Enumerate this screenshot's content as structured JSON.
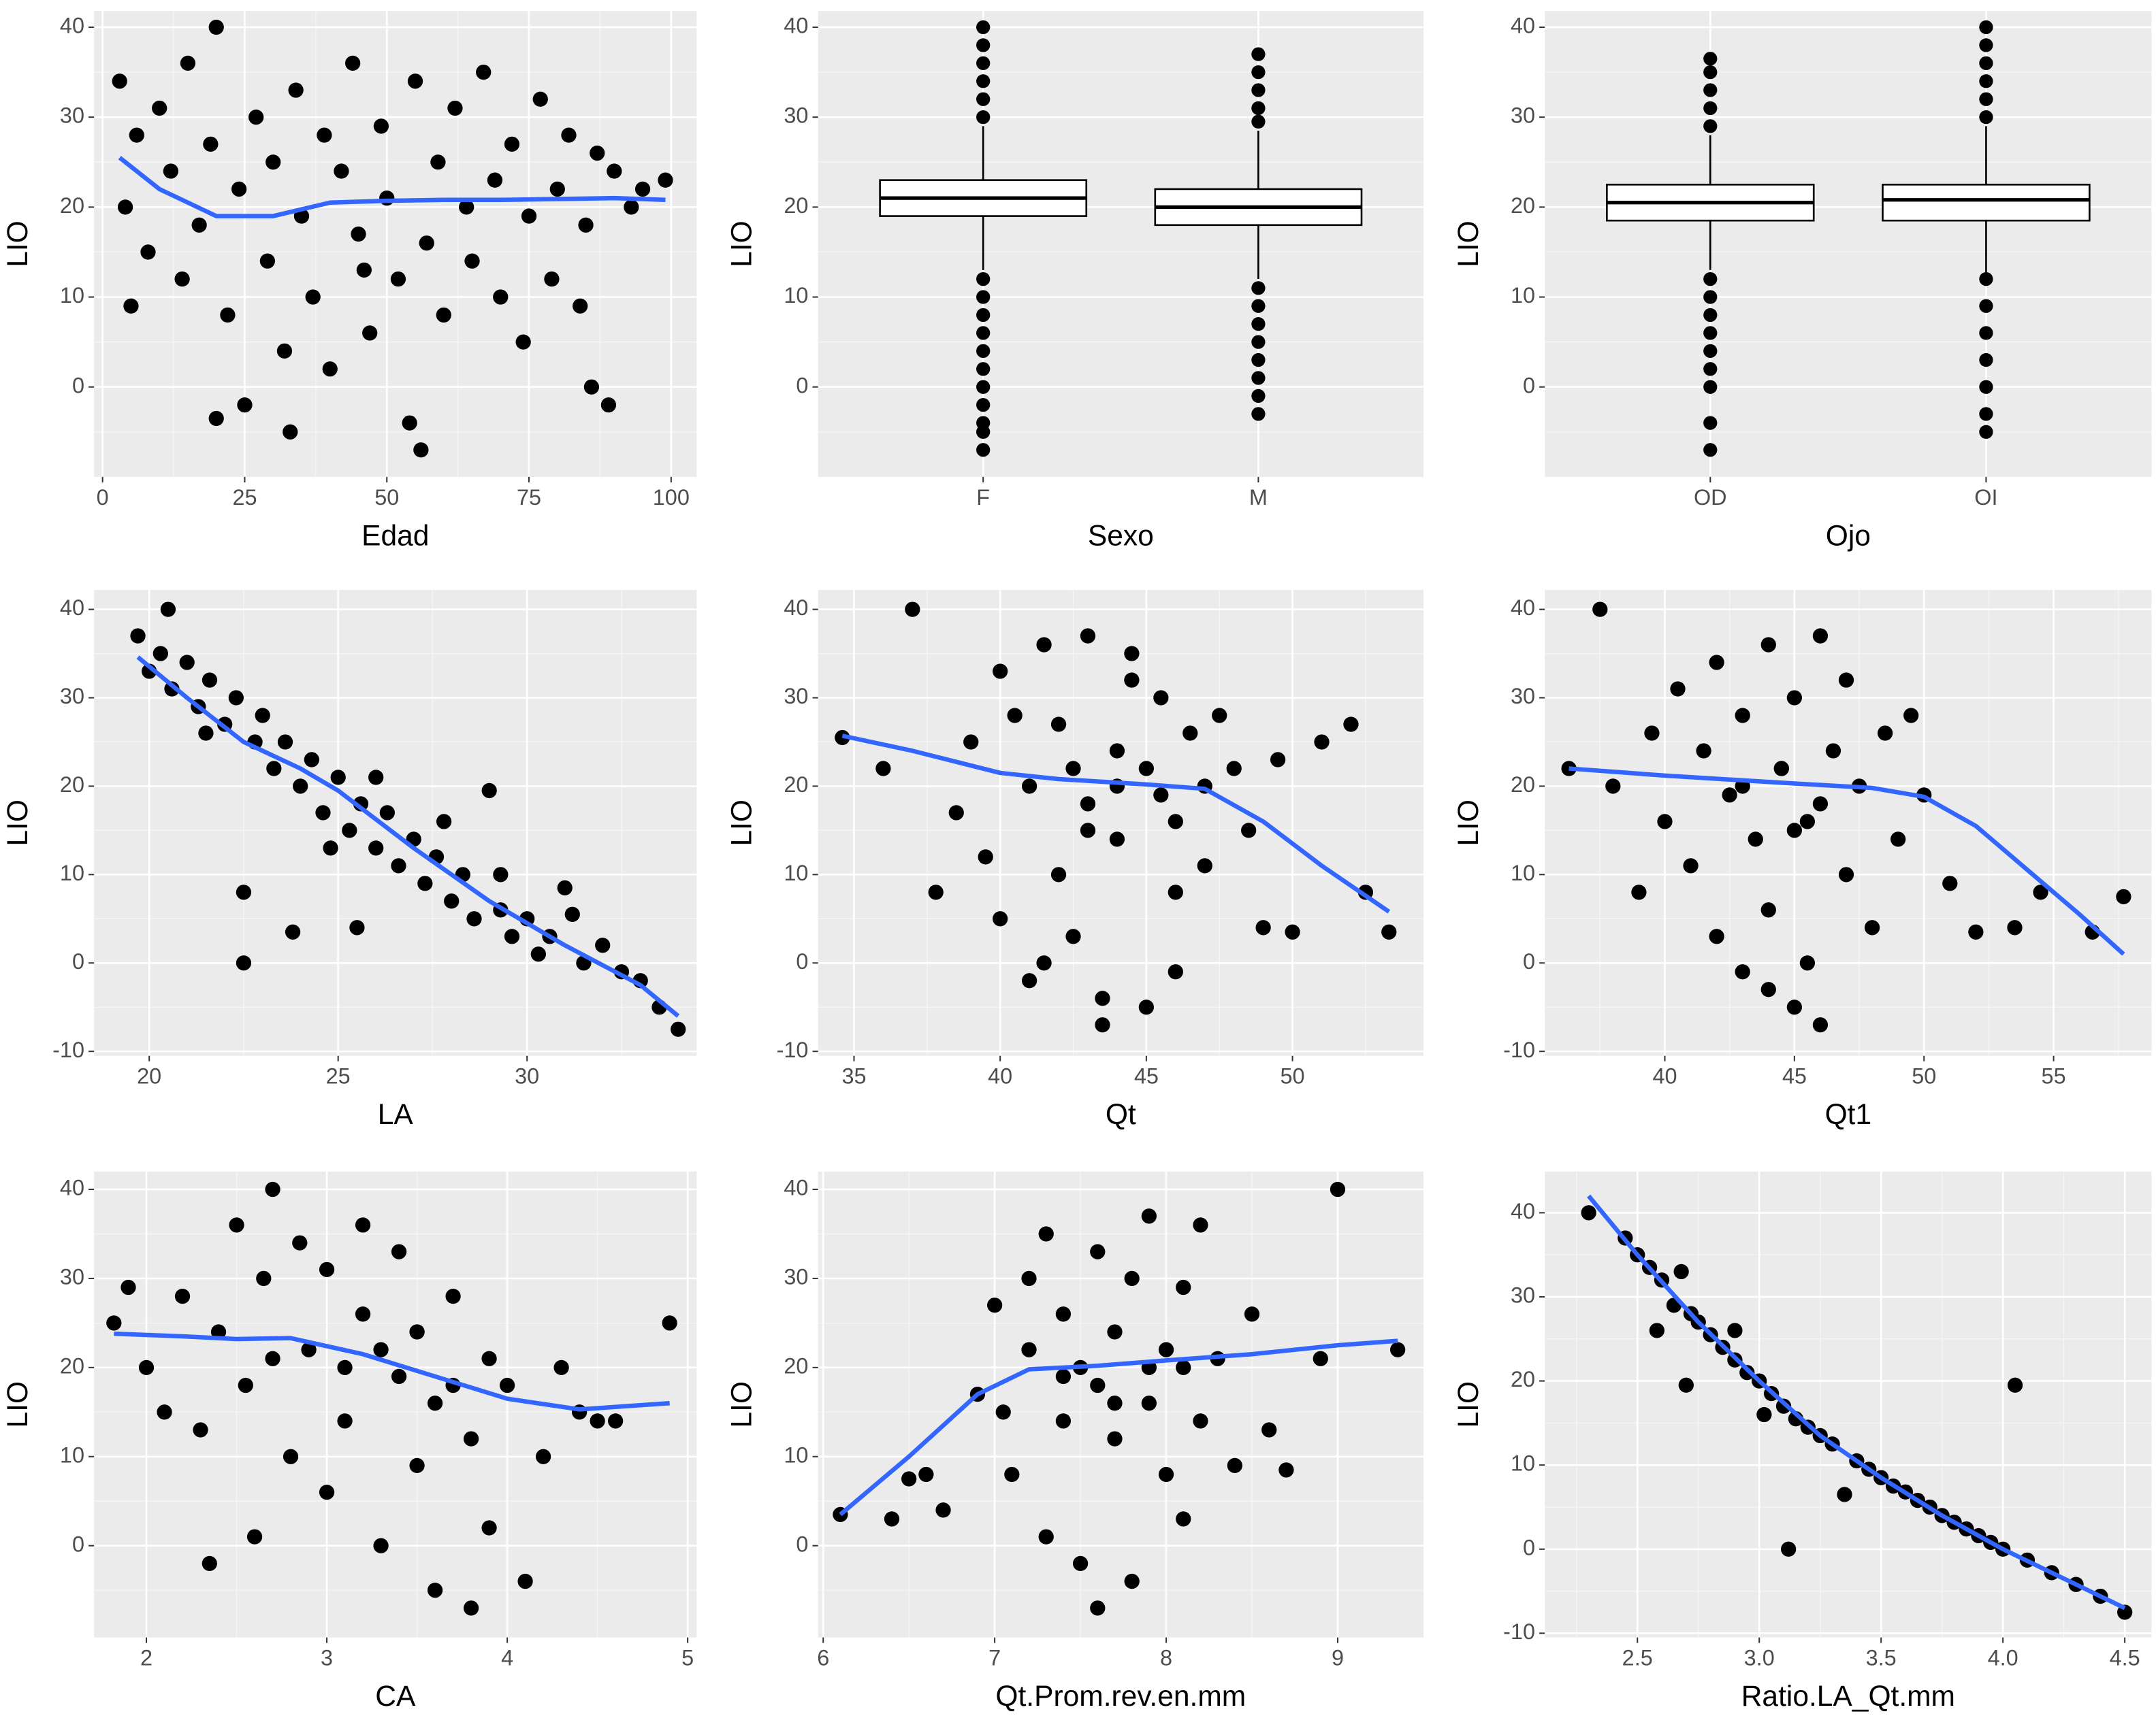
{
  "chart_data": [
    {
      "type": "scatter",
      "xlabel": "Edad",
      "ylabel": "LIO",
      "xlim": [
        -1.5,
        104.5
      ],
      "ylim": [
        -10,
        41.8
      ],
      "xticks": [
        0,
        25,
        50,
        75,
        100
      ],
      "yticks": [
        0,
        10,
        20,
        30,
        40
      ],
      "grid": true,
      "color": "#000000",
      "x": [
        3,
        4,
        5,
        6,
        8,
        10,
        12,
        14,
        15,
        17,
        19,
        20,
        22,
        24,
        25,
        27,
        29,
        30,
        32,
        34,
        35,
        37,
        39,
        40,
        42,
        44,
        45,
        47,
        49,
        50,
        52,
        54,
        55,
        57,
        59,
        60,
        62,
        64,
        65,
        67,
        69,
        70,
        72,
        74,
        75,
        77,
        79,
        80,
        82,
        84,
        85,
        87,
        89,
        90,
        93,
        95,
        99,
        20,
        33,
        56,
        86,
        46
      ],
      "y": [
        34,
        20,
        9,
        28,
        15,
        31,
        24,
        12,
        36,
        18,
        27,
        40,
        8,
        22,
        -2,
        30,
        14,
        25,
        4,
        33,
        19,
        10,
        28,
        2,
        24,
        36,
        17,
        6,
        29,
        21,
        12,
        -4,
        34,
        16,
        25,
        8,
        31,
        20,
        14,
        35,
        23,
        10,
        27,
        5,
        19,
        32,
        12,
        22,
        28,
        9,
        18,
        26,
        -2,
        24,
        20,
        22,
        23,
        -3.5,
        -5,
        -7,
        0,
        13
      ],
      "smooth": {
        "color": "#3366ff",
        "x": [
          3,
          10,
          20,
          30,
          40,
          50,
          60,
          70,
          80,
          90,
          99
        ],
        "y": [
          25.5,
          22,
          19,
          19,
          20.5,
          20.7,
          20.8,
          20.8,
          20.9,
          21,
          20.8
        ]
      }
    },
    {
      "type": "box",
      "xlabel": "Sexo",
      "ylabel": "LIO",
      "ylim": [
        -10,
        41.8
      ],
      "yticks": [
        0,
        10,
        20,
        30,
        40
      ],
      "grid": true,
      "color": "#000000",
      "categories": [
        "F",
        "M"
      ],
      "boxes": [
        {
          "min": 13,
          "q1": 19,
          "median": 21,
          "q3": 23,
          "max": 29,
          "outliers": [
            12,
            10,
            8,
            6,
            4,
            2,
            0,
            -2,
            -4,
            -5,
            -7,
            30,
            32,
            34,
            36,
            38,
            40
          ]
        },
        {
          "min": 12,
          "q1": 18,
          "median": 20,
          "q3": 22,
          "max": 28.5,
          "outliers": [
            11,
            9,
            7,
            5,
            3,
            1,
            -1,
            -3,
            29.5,
            31,
            33,
            35,
            37
          ]
        }
      ]
    },
    {
      "type": "box",
      "xlabel": "Ojo",
      "ylabel": "LIO",
      "ylim": [
        -10,
        41.8
      ],
      "yticks": [
        0,
        10,
        20,
        30,
        40
      ],
      "grid": true,
      "color": "#000000",
      "categories": [
        "OD",
        "OI"
      ],
      "boxes": [
        {
          "min": 13,
          "q1": 18.5,
          "median": 20.5,
          "q3": 22.5,
          "max": 28,
          "outliers": [
            12,
            10,
            8,
            6,
            4,
            2,
            0,
            -4,
            -7,
            29,
            31,
            33,
            35,
            36.5
          ]
        },
        {
          "min": 12.5,
          "q1": 18.5,
          "median": 20.8,
          "q3": 22.5,
          "max": 29,
          "outliers": [
            12,
            9,
            6,
            3,
            0,
            -3,
            -5,
            30,
            32,
            34,
            36,
            38,
            40
          ]
        }
      ]
    },
    {
      "type": "scatter",
      "xlabel": "LA",
      "ylabel": "LIO",
      "xlim": [
        18.54,
        34.49
      ],
      "ylim": [
        -10.5,
        42.2
      ],
      "xticks": [
        20,
        25,
        30
      ],
      "yticks": [
        -10,
        0,
        10,
        20,
        30,
        40
      ],
      "grid": true,
      "color": "#000000",
      "x": [
        19.7,
        20,
        20.3,
        20.6,
        21,
        21.3,
        21.6,
        22,
        22.3,
        22.5,
        22.8,
        23,
        23.3,
        23.6,
        24,
        24.3,
        24.6,
        25,
        25.3,
        25.6,
        26,
        26.3,
        26.6,
        27,
        27.3,
        27.6,
        28,
        28.3,
        28.6,
        29,
        29.3,
        29.6,
        30,
        30.3,
        30.6,
        31,
        31.5,
        32,
        32.5,
        33,
        33.5,
        34,
        20.5,
        22.5,
        23.8,
        25.5,
        26,
        29.3,
        31.2,
        21.5,
        24.8,
        27.8
      ],
      "y": [
        37,
        33,
        35,
        31,
        34,
        29,
        32,
        27,
        30,
        0,
        25,
        28,
        22,
        25,
        20,
        23,
        17,
        21,
        15,
        18,
        13,
        17,
        11,
        14,
        9,
        12,
        7,
        10,
        5,
        19.5,
        6,
        3,
        5,
        1,
        3,
        8.5,
        0,
        2,
        -1,
        -2,
        -5,
        -7.5,
        40,
        8,
        3.5,
        4,
        21,
        10,
        5.5,
        26,
        13,
        16
      ],
      "smooth": {
        "color": "#3366ff",
        "x": [
          19.7,
          21,
          22.5,
          24,
          25,
          27,
          29,
          31,
          33,
          34
        ],
        "y": [
          34.6,
          30,
          25,
          22,
          19.5,
          13,
          7,
          2,
          -2.5,
          -6
        ]
      }
    },
    {
      "type": "scatter",
      "xlabel": "Qt",
      "ylabel": "LIO",
      "xlim": [
        33.77,
        54.48
      ],
      "ylim": [
        -10.5,
        42.2
      ],
      "xticks": [
        35,
        40,
        45,
        50
      ],
      "yticks": [
        -10,
        0,
        10,
        20,
        30,
        40
      ],
      "grid": true,
      "color": "#000000",
      "x": [
        34.6,
        36,
        37,
        37.8,
        38.5,
        39,
        39.5,
        40,
        40,
        40.5,
        41,
        41,
        41.5,
        42,
        42,
        42.5,
        43,
        43,
        43.5,
        44,
        44,
        44.5,
        45,
        45,
        45.5,
        46,
        46,
        46.5,
        47,
        47,
        47.5,
        48,
        48.5,
        49,
        49.5,
        50,
        51,
        52,
        52.5,
        53.3,
        41.5,
        43.5,
        44.5,
        46,
        42.5,
        45.5,
        43,
        44
      ],
      "y": [
        25.5,
        22,
        40,
        8,
        17,
        25,
        12,
        33,
        5,
        28,
        20,
        -2,
        36,
        10,
        27,
        3,
        18,
        37,
        -7,
        24,
        14,
        32,
        -5,
        22,
        30,
        8,
        16,
        26,
        20,
        11,
        28,
        22,
        15,
        4,
        23,
        3.5,
        25,
        27,
        8,
        3.5,
        0,
        -4,
        35,
        -1,
        22,
        19,
        15,
        20
      ],
      "smooth": {
        "color": "#3366ff",
        "x": [
          34.6,
          37,
          40,
          42,
          45,
          47,
          49,
          51,
          53.3
        ],
        "y": [
          25.7,
          24,
          21.5,
          20.8,
          20.2,
          19.7,
          16,
          11,
          5.8
        ]
      }
    },
    {
      "type": "scatter",
      "xlabel": "Qt1",
      "ylabel": "LIO",
      "xlim": [
        35.37,
        58.78
      ],
      "ylim": [
        -10.5,
        42.2
      ],
      "xticks": [
        40,
        45,
        50,
        55
      ],
      "yticks": [
        -10,
        0,
        10,
        20,
        30,
        40
      ],
      "grid": true,
      "color": "#000000",
      "x": [
        36.3,
        37.5,
        38,
        39,
        39.5,
        40,
        40.5,
        41,
        41.5,
        42,
        42,
        42.5,
        43,
        43,
        43.5,
        44,
        44,
        44.5,
        45,
        45,
        45.5,
        46,
        46,
        46.5,
        47,
        47,
        47.5,
        48,
        48.5,
        49,
        49.5,
        50,
        51,
        52,
        53.5,
        54.5,
        56.5,
        57.7,
        44,
        45.5,
        43,
        46,
        44.5,
        45
      ],
      "y": [
        22,
        40,
        20,
        8,
        26,
        16,
        31,
        11,
        24,
        34,
        3,
        19,
        28,
        -1,
        14,
        36,
        6,
        22,
        -5,
        30,
        16,
        37,
        -7,
        24,
        10,
        32,
        20,
        4,
        26,
        14,
        28,
        19,
        9,
        3.5,
        4,
        8,
        3.5,
        7.5,
        -3,
        0,
        20,
        18,
        22,
        15
      ],
      "smooth": {
        "color": "#3366ff",
        "x": [
          36.3,
          40,
          45,
          48,
          50,
          52,
          54,
          56,
          57.7
        ],
        "y": [
          22,
          21.2,
          20.3,
          19.8,
          18.8,
          15.5,
          10.5,
          5.5,
          1
        ]
      }
    },
    {
      "type": "scatter",
      "xlabel": "CA",
      "ylabel": "LIO",
      "xlim": [
        1.71,
        5.05
      ],
      "ylim": [
        -10.3,
        42
      ],
      "xticks": [
        2,
        3,
        4,
        5
      ],
      "yticks": [
        0,
        10,
        20,
        30,
        40
      ],
      "grid": true,
      "color": "#000000",
      "x": [
        1.82,
        1.9,
        2,
        2.1,
        2.2,
        2.3,
        2.35,
        2.4,
        2.5,
        2.55,
        2.6,
        2.65,
        2.7,
        2.8,
        2.85,
        2.9,
        3,
        3,
        3.1,
        3.2,
        3.2,
        3.3,
        3.4,
        3.4,
        3.5,
        3.5,
        3.6,
        3.6,
        3.7,
        3.8,
        3.8,
        3.9,
        3.9,
        4,
        4.1,
        4.2,
        4.3,
        4.4,
        4.5,
        4.6,
        4.9,
        2.7,
        3.3,
        3.7,
        3.1,
        3.5
      ],
      "y": [
        25,
        29,
        20,
        15,
        28,
        13,
        -2,
        24,
        36,
        18,
        1,
        30,
        40,
        10,
        34,
        22,
        6,
        31,
        14,
        26,
        36,
        0,
        19,
        33,
        9,
        24,
        -5,
        16,
        28,
        -7,
        12,
        21,
        2,
        18,
        -4,
        10,
        20,
        15,
        14,
        14,
        25,
        21,
        22,
        18,
        20,
        24
      ],
      "smooth": {
        "color": "#3366ff",
        "x": [
          1.82,
          2.2,
          2.5,
          2.8,
          3.2,
          3.6,
          4,
          4.4,
          4.9
        ],
        "y": [
          23.8,
          23.5,
          23.2,
          23.3,
          21.5,
          19,
          16.5,
          15.3,
          16
        ]
      }
    },
    {
      "type": "scatter",
      "xlabel": "Qt.Prom.rev.en.mm",
      "ylabel": "LIO",
      "xlim": [
        5.97,
        9.5
      ],
      "ylim": [
        -10.3,
        42
      ],
      "xticks": [
        6,
        7,
        8,
        9
      ],
      "yticks": [
        0,
        10,
        20,
        30,
        40
      ],
      "grid": true,
      "color": "#000000",
      "x": [
        6.1,
        6.4,
        6.5,
        6.6,
        6.7,
        6.9,
        7,
        7.05,
        7.1,
        7.2,
        7.2,
        7.3,
        7.3,
        7.4,
        7.4,
        7.5,
        7.5,
        7.6,
        7.6,
        7.7,
        7.7,
        7.8,
        7.8,
        7.9,
        7.9,
        8,
        8,
        8.1,
        8.1,
        8.2,
        8.2,
        8.3,
        8.4,
        8.5,
        8.6,
        8.7,
        8.9,
        9,
        9.35,
        7.6,
        7.9,
        8.1,
        7.4,
        7.7
      ],
      "y": [
        3.5,
        3,
        7.5,
        8,
        4,
        17,
        27,
        15,
        8,
        30,
        22,
        1,
        35,
        14,
        26,
        -2,
        20,
        -7,
        33,
        12,
        24,
        -4,
        30,
        16,
        37,
        8,
        22,
        29,
        3,
        14,
        36,
        21,
        9,
        26,
        13,
        8.5,
        21,
        40,
        22,
        18,
        20,
        20,
        19,
        16
      ],
      "smooth": {
        "color": "#3366ff",
        "x": [
          6.1,
          6.5,
          6.9,
          7.2,
          7.6,
          8,
          8.5,
          9,
          9.35
        ],
        "y": [
          3.5,
          10,
          17,
          19.8,
          20.2,
          20.8,
          21.5,
          22.5,
          23
        ]
      }
    },
    {
      "type": "scatter",
      "xlabel": "Ratio.LA_Qt.mm",
      "ylabel": "LIO",
      "xlim": [
        2.12,
        4.61
      ],
      "ylim": [
        -10.5,
        44.9
      ],
      "xticks": [
        2.5,
        {
          "value": 3,
          "label": "3.0"
        },
        3.5,
        {
          "value": 4,
          "label": "4.0"
        },
        4.5
      ],
      "yticks": [
        -10,
        0,
        10,
        20,
        30,
        40
      ],
      "grid": true,
      "color": "#000000",
      "x": [
        2.3,
        2.45,
        2.5,
        2.55,
        2.6,
        2.65,
        2.7,
        2.72,
        2.75,
        2.8,
        2.85,
        2.9,
        2.95,
        3,
        3.05,
        3.1,
        3.12,
        3.15,
        3.2,
        3.25,
        3.3,
        3.35,
        3.4,
        3.45,
        3.5,
        3.55,
        3.6,
        3.65,
        3.7,
        3.75,
        3.8,
        3.85,
        3.9,
        3.95,
        4,
        4.05,
        4.1,
        4.2,
        4.3,
        4.4,
        4.5,
        2.58,
        2.9,
        3.02,
        2.68
      ],
      "y": [
        40,
        37,
        35,
        33.5,
        32,
        29,
        19.5,
        28,
        27,
        25.5,
        24,
        22.5,
        21,
        20,
        18.5,
        17,
        0,
        15.5,
        14.5,
        13.5,
        12.5,
        6.5,
        10.5,
        9.5,
        8.5,
        7.5,
        6.8,
        5.8,
        5,
        4,
        3.2,
        2.4,
        1.6,
        0.8,
        0,
        19.5,
        -1.3,
        -2.8,
        -4.2,
        -5.6,
        -7.5,
        26,
        26,
        16,
        33
      ],
      "smooth": {
        "color": "#3366ff",
        "x": [
          2.3,
          2.5,
          2.75,
          3,
          3.25,
          3.5,
          3.75,
          4,
          4.25,
          4.5
        ],
        "y": [
          42,
          35,
          27,
          20,
          13.5,
          8.5,
          4,
          0,
          -3.5,
          -7
        ]
      }
    }
  ]
}
